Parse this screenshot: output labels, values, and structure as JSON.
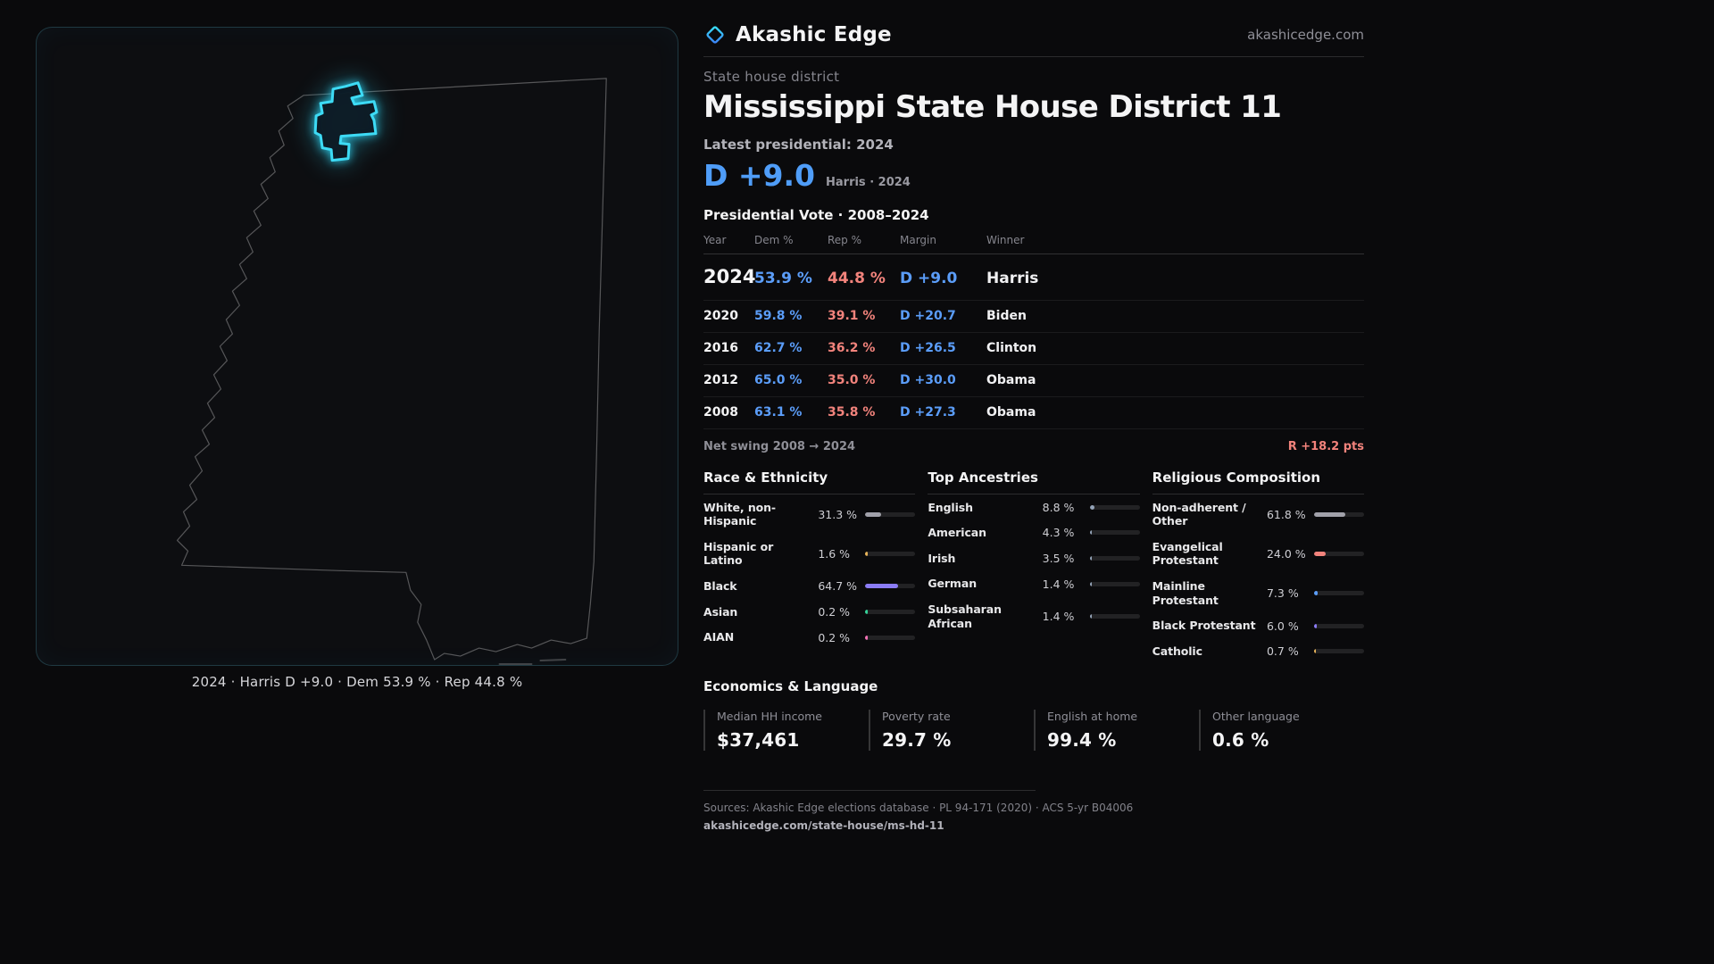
{
  "brand": {
    "name": "Akashic Edge",
    "domain": "akashicedge.com"
  },
  "colors": {
    "dem": "#5b9df9",
    "rep": "#f2837c",
    "accent_cyan": "#3ddbf5",
    "headline_blue": "#4f9df8"
  },
  "map": {
    "caption": "2024 · Harris D +9.0 · Dem 53.9 % · Rep 44.8 %",
    "state": "Mississippi"
  },
  "page": {
    "kicker": "State house district",
    "title": "Mississippi State House District 11",
    "latest_label": "Latest presidential: 2024",
    "headline_margin": "D +9.0",
    "headline_detail": "Harris · 2024"
  },
  "vote_table": {
    "title": "Presidential Vote · 2008–2024",
    "columns": [
      "Year",
      "Dem %",
      "Rep %",
      "Margin",
      "Winner"
    ],
    "rows": [
      {
        "year": "2024",
        "dem": "53.9 %",
        "rep": "44.8 %",
        "margin": "D +9.0",
        "winner": "Harris"
      },
      {
        "year": "2020",
        "dem": "59.8 %",
        "rep": "39.1 %",
        "margin": "D +20.7",
        "winner": "Biden"
      },
      {
        "year": "2016",
        "dem": "62.7 %",
        "rep": "36.2 %",
        "margin": "D +26.5",
        "winner": "Clinton"
      },
      {
        "year": "2012",
        "dem": "65.0 %",
        "rep": "35.0 %",
        "margin": "D +30.0",
        "winner": "Obama"
      },
      {
        "year": "2008",
        "dem": "63.1 %",
        "rep": "35.8 %",
        "margin": "D +27.3",
        "winner": "Obama"
      }
    ],
    "net_swing_label": "Net swing 2008 → 2024",
    "net_swing_value": "R +18.2 pts"
  },
  "demographics": {
    "race": {
      "title": "Race & Ethnicity",
      "items": [
        {
          "label": "White, non-Hispanic",
          "value": "31.3 %",
          "pct": 31.3,
          "color": "#a1a1aa"
        },
        {
          "label": "Hispanic or Latino",
          "value": "1.6 %",
          "pct": 1.6,
          "color": "#e8b45a"
        },
        {
          "label": "Black",
          "value": "64.7 %",
          "pct": 64.7,
          "color": "#8b7cf6"
        },
        {
          "label": "Asian",
          "value": "0.2 %",
          "pct": 0.2,
          "color": "#34d399"
        },
        {
          "label": "AIAN",
          "value": "0.2 %",
          "pct": 0.2,
          "color": "#f472b6"
        }
      ]
    },
    "ancestries": {
      "title": "Top Ancestries",
      "items": [
        {
          "label": "English",
          "value": "8.8 %",
          "pct": 8.8,
          "color": "#94a3b8"
        },
        {
          "label": "American",
          "value": "4.3 %",
          "pct": 4.3,
          "color": "#94a3b8"
        },
        {
          "label": "Irish",
          "value": "3.5 %",
          "pct": 3.5,
          "color": "#94a3b8"
        },
        {
          "label": "German",
          "value": "1.4 %",
          "pct": 1.4,
          "color": "#94a3b8"
        },
        {
          "label": "Subsaharan African",
          "value": "1.4 %",
          "pct": 1.4,
          "color": "#94a3b8"
        }
      ]
    },
    "religion": {
      "title": "Religious Composition",
      "items": [
        {
          "label": "Non-adherent / Other",
          "value": "61.8 %",
          "pct": 61.8,
          "color": "#a1a1aa"
        },
        {
          "label": "Evangelical Protestant",
          "value": "24.0 %",
          "pct": 24.0,
          "color": "#f2837c"
        },
        {
          "label": "Mainline Protestant",
          "value": "7.3 %",
          "pct": 7.3,
          "color": "#5b9df9"
        },
        {
          "label": "Black Protestant",
          "value": "6.0 %",
          "pct": 6.0,
          "color": "#8b7cf6"
        },
        {
          "label": "Catholic",
          "value": "0.7 %",
          "pct": 0.7,
          "color": "#e8b45a"
        }
      ]
    }
  },
  "economics": {
    "title": "Economics & Language",
    "stats": [
      {
        "label": "Median HH income",
        "value": "$37,461"
      },
      {
        "label": "Poverty rate",
        "value": "29.7 %"
      },
      {
        "label": "English at home",
        "value": "99.4 %"
      },
      {
        "label": "Other language",
        "value": "0.6 %"
      }
    ]
  },
  "footer": {
    "sources": "Sources: Akashic Edge elections database · PL 94-171 (2020) · ACS 5-yr B04006",
    "permalink": "akashicedge.com/state-house/ms-hd-11"
  },
  "chart_data": [
    {
      "type": "table",
      "title": "Presidential Vote · 2008–2024",
      "columns": [
        "Year",
        "Dem %",
        "Rep %",
        "Margin",
        "Winner"
      ],
      "rows": [
        [
          "2024",
          53.9,
          44.8,
          "D +9.0",
          "Harris"
        ],
        [
          "2020",
          59.8,
          39.1,
          "D +20.7",
          "Biden"
        ],
        [
          "2016",
          62.7,
          36.2,
          "D +26.5",
          "Clinton"
        ],
        [
          "2012",
          65.0,
          35.0,
          "D +30.0",
          "Obama"
        ],
        [
          "2008",
          63.1,
          35.8,
          "D +27.3",
          "Obama"
        ]
      ],
      "annotations": [
        "Net swing 2008 → 2024: R +18.2 pts"
      ]
    },
    {
      "type": "bar",
      "title": "Race & Ethnicity",
      "categories": [
        "White, non-Hispanic",
        "Hispanic or Latino",
        "Black",
        "Asian",
        "AIAN"
      ],
      "values": [
        31.3,
        1.6,
        64.7,
        0.2,
        0.2
      ],
      "unit": "%",
      "xlim": [
        0,
        100
      ]
    },
    {
      "type": "bar",
      "title": "Top Ancestries",
      "categories": [
        "English",
        "American",
        "Irish",
        "German",
        "Subsaharan African"
      ],
      "values": [
        8.8,
        4.3,
        3.5,
        1.4,
        1.4
      ],
      "unit": "%",
      "xlim": [
        0,
        100
      ]
    },
    {
      "type": "bar",
      "title": "Religious Composition",
      "categories": [
        "Non-adherent / Other",
        "Evangelical Protestant",
        "Mainline Protestant",
        "Black Protestant",
        "Catholic"
      ],
      "values": [
        61.8,
        24.0,
        7.3,
        6.0,
        0.7
      ],
      "unit": "%",
      "xlim": [
        0,
        100
      ]
    }
  ]
}
